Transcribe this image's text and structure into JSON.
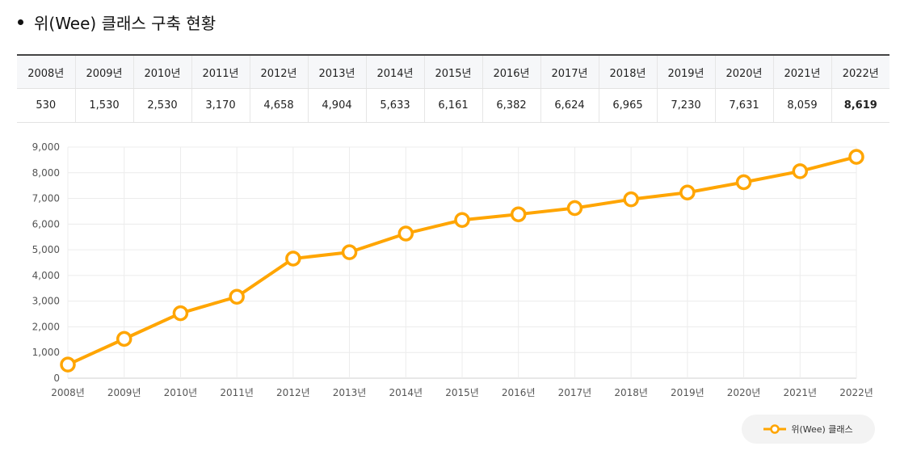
{
  "heading": "위(Wee) 클래스 구축 현황",
  "table": {
    "headers": [
      "2008년",
      "2009년",
      "2010년",
      "2011년",
      "2012년",
      "2013년",
      "2014년",
      "2015년",
      "2016년",
      "2017년",
      "2018년",
      "2019년",
      "2020년",
      "2021년",
      "2022년"
    ],
    "values": [
      "530",
      "1,530",
      "2,530",
      "3,170",
      "4,658",
      "4,904",
      "5,633",
      "6,161",
      "6,382",
      "6,624",
      "6,965",
      "7,230",
      "7,631",
      "8,059",
      "8,619"
    ]
  },
  "chart_data": {
    "type": "line",
    "title": "",
    "xlabel": "",
    "ylabel": "",
    "categories": [
      "2008년",
      "2009년",
      "2010년",
      "2011년",
      "2012년",
      "2013년",
      "2014년",
      "2015년",
      "2016년",
      "2017년",
      "2018년",
      "2019년",
      "2020년",
      "2021년",
      "2022년"
    ],
    "series": [
      {
        "name": "위(Wee) 클래스",
        "color": "#ffa500",
        "values": [
          530,
          1530,
          2530,
          3170,
          4658,
          4904,
          5633,
          6161,
          6382,
          6624,
          6965,
          7230,
          7631,
          8059,
          8619
        ]
      }
    ],
    "ylim": [
      0,
      9000
    ],
    "yticks": [
      0,
      1000,
      2000,
      3000,
      4000,
      5000,
      6000,
      7000,
      8000,
      9000
    ],
    "ytick_labels": [
      "0",
      "1,000",
      "2,000",
      "3,000",
      "4,000",
      "5,000",
      "6,000",
      "7,000",
      "8,000",
      "9,000"
    ],
    "grid": true,
    "legend": "bottom-right"
  }
}
